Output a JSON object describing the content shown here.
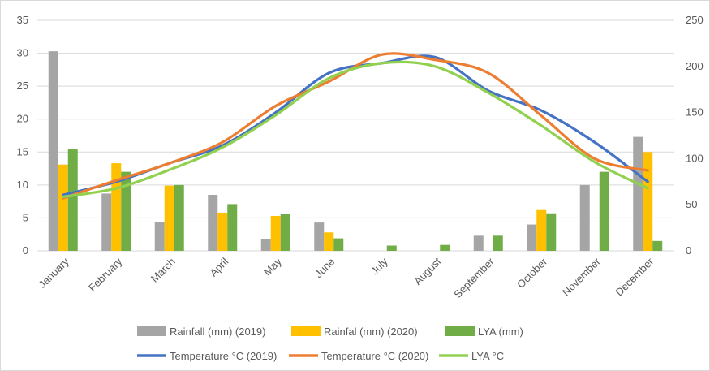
{
  "chart_data": {
    "type": "bar",
    "categories": [
      "January",
      "February",
      "March",
      "April",
      "May",
      "June",
      "July",
      "August",
      "September",
      "October",
      "November",
      "December"
    ],
    "y_left": {
      "lim": [
        0,
        35
      ],
      "ticks": [
        "0",
        "5",
        "10",
        "15",
        "20",
        "25",
        "30",
        "35"
      ]
    },
    "y_right": {
      "lim": [
        0,
        250
      ],
      "ticks": [
        "0",
        "50",
        "100",
        "150",
        "200",
        "250"
      ]
    },
    "grid": true,
    "legend_position": "bottom",
    "bar_series": [
      {
        "name": "Rainfall (mm) (2019)",
        "color": "#a5a5a5",
        "values": [
          30.3,
          8.7,
          4.4,
          8.5,
          1.8,
          4.3,
          0,
          0,
          2.3,
          4.0,
          10.0,
          17.3
        ]
      },
      {
        "name": "Rainfal (mm) (2020)",
        "color": "#ffc000",
        "values": [
          13.1,
          13.3,
          9.9,
          5.8,
          5.3,
          2.8,
          0,
          0,
          0,
          6.2,
          0,
          15.0
        ]
      },
      {
        "name": "LYA (mm)",
        "color": "#70ad47",
        "values": [
          15.4,
          12.0,
          10.0,
          7.1,
          5.6,
          1.9,
          0.8,
          0.9,
          2.3,
          5.7,
          12.0,
          1.5
        ]
      }
    ],
    "line_series": [
      {
        "name": "Temperature °C (2019)",
        "color": "#4472c4",
        "values": [
          8.5,
          10.5,
          13.3,
          16.0,
          21.0,
          27.0,
          28.5,
          29.4,
          24.3,
          21.3,
          16.5,
          10.5
        ]
      },
      {
        "name": "Temperature °C (2020)",
        "color": "#ed7d31",
        "values": [
          8.0,
          10.7,
          13.3,
          16.5,
          22.0,
          25.7,
          29.8,
          29.0,
          27.0,
          20.5,
          14.0,
          12.2
        ]
      },
      {
        "name": "LYA  °C",
        "color": "#92d050",
        "values": [
          8.2,
          9.5,
          12.3,
          15.7,
          20.6,
          26.2,
          28.5,
          28.0,
          24.0,
          19.0,
          13.5,
          9.5
        ]
      }
    ]
  }
}
